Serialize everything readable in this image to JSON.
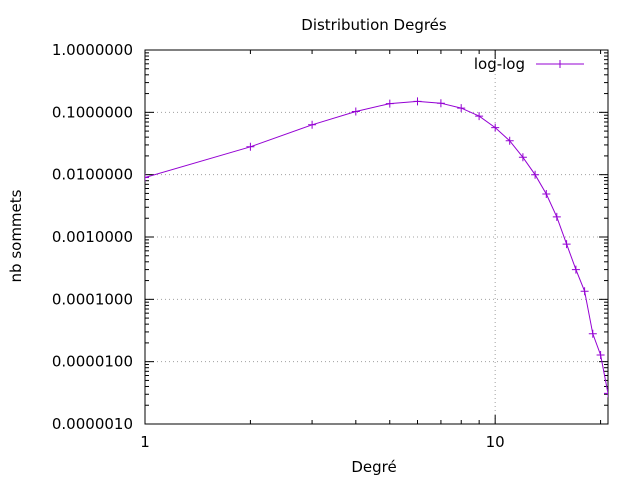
{
  "chart_data": {
    "type": "line",
    "title": "Distribution Degrés",
    "xlabel": "Degré",
    "ylabel": "nb sommets",
    "xscale": "log",
    "yscale": "log",
    "xlim": [
      1,
      21
    ],
    "ylim": [
      1e-06,
      1
    ],
    "grid": true,
    "legend_position": "top-right",
    "x_ticks": [
      {
        "value": 1,
        "label": "1"
      },
      {
        "value": 10,
        "label": "10"
      }
    ],
    "y_ticks": [
      {
        "value": 1,
        "label": "1.0000000"
      },
      {
        "value": 0.1,
        "label": "0.1000000"
      },
      {
        "value": 0.01,
        "label": "0.0100000"
      },
      {
        "value": 0.001,
        "label": "0.0010000"
      },
      {
        "value": 0.0001,
        "label": "0.0001000"
      },
      {
        "value": 1e-05,
        "label": "0.0000100"
      },
      {
        "value": 1e-06,
        "label": "0.0000010"
      }
    ],
    "series": [
      {
        "name": "log-log",
        "color": "#9400d3",
        "marker": "plus",
        "x": [
          1,
          2,
          3,
          4,
          5,
          6,
          7,
          8,
          9,
          10,
          11,
          12,
          13,
          14,
          15,
          16,
          17,
          18,
          19,
          20,
          21,
          22
        ],
        "y": [
          0.009,
          0.028,
          0.063,
          0.103,
          0.138,
          0.15,
          0.14,
          0.117,
          0.087,
          0.057,
          0.035,
          0.019,
          0.01,
          0.0049,
          0.0021,
          0.00077,
          0.0003,
          0.000135,
          2.8e-05,
          1.28e-05,
          3.1e-06,
          3.1e-06
        ]
      }
    ]
  }
}
